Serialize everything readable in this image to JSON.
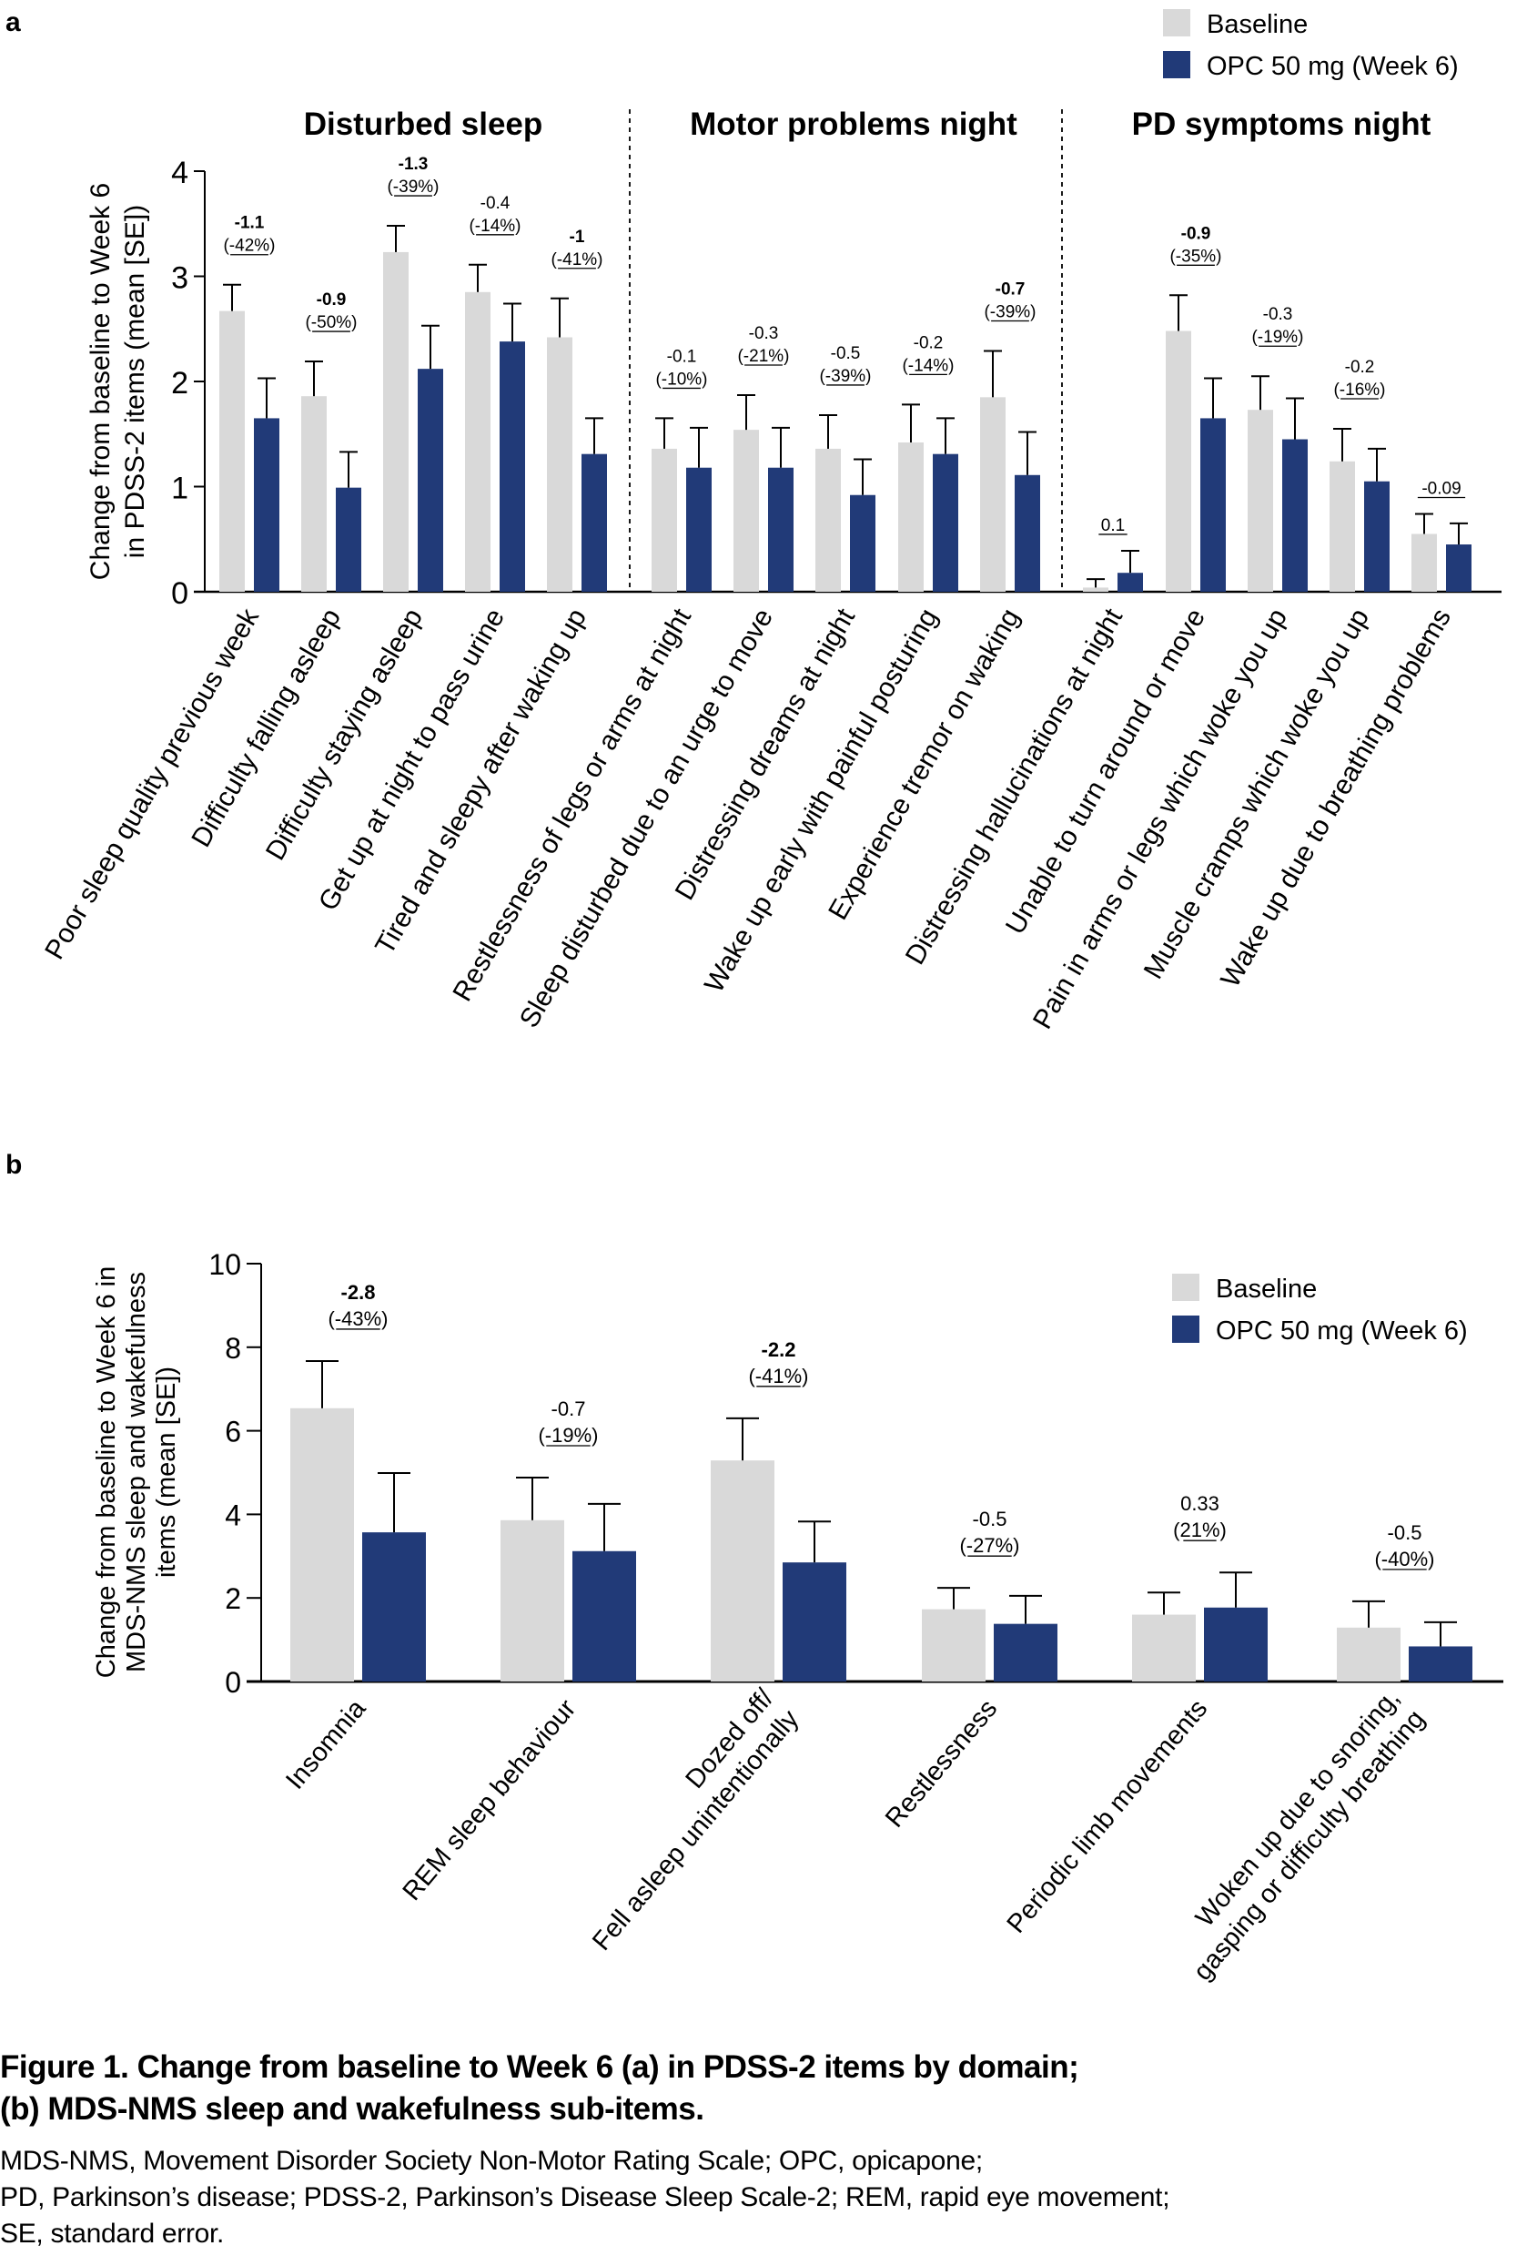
{
  "panels": {
    "a_label": "a",
    "b_label": "b"
  },
  "legend": {
    "items": [
      {
        "label": "Baseline",
        "color": "#d9d9d9"
      },
      {
        "label": "OPC 50 mg (Week 6)",
        "color": "#213a78"
      }
    ]
  },
  "caption": {
    "title_line1": "Figure 1. Change from baseline to Week 6 (a) in PDSS-2 items by domain;",
    "title_line2": "(b) MDS-NMS sleep and wakefulness sub-items.",
    "abbr_line1": "MDS-NMS, Movement Disorder Society Non-Motor Rating Scale; OPC, opicapone;",
    "abbr_line2": "PD, Parkinson’s disease; PDSS-2, Parkinson’s Disease Sleep Scale-2; REM, rapid eye movement;",
    "abbr_line3": "SE, standard error."
  },
  "chart_data": [
    {
      "type": "bar",
      "panel": "a",
      "title": "",
      "ylabel_lines": [
        "Change from baseline to Week 6",
        "in PDSS-2 items (mean [SE])"
      ],
      "ylim": [
        0,
        4
      ],
      "yticks": [
        0,
        1,
        2,
        3,
        4
      ],
      "grid": false,
      "legend_position": "top-right",
      "domains": [
        {
          "label": "Disturbed sleep",
          "count": 5
        },
        {
          "label": "Motor problems night",
          "count": 5
        },
        {
          "label": "PD symptoms night",
          "count": 5
        }
      ],
      "categories": [
        "Poor sleep quality previous week",
        "Difficulty falling asleep",
        "Difficulty staying asleep",
        "Get up at night to pass urine",
        "Tired and sleepy after waking up",
        "Restlessness of legs or arms at night",
        "Sleep disturbed due to an urge to move",
        "Distressing dreams at night",
        "Wake up early with painful posturing",
        "Experience tremor on waking",
        "Distressing hallucinations at night",
        "Unable to turn around or move",
        "Pain in arms or legs which woke you up",
        "Muscle cramps which woke you up",
        "Wake up due to breathing problems"
      ],
      "series": [
        {
          "name": "Baseline",
          "color": "#d9d9d9",
          "values": [
            2.67,
            1.86,
            3.23,
            2.85,
            2.42,
            1.36,
            1.54,
            1.36,
            1.42,
            1.85,
            0.04,
            2.48,
            1.73,
            1.24,
            0.55
          ],
          "se_upper": [
            2.92,
            2.19,
            3.48,
            3.11,
            2.79,
            1.65,
            1.87,
            1.68,
            1.78,
            2.29,
            0.12,
            2.82,
            2.05,
            1.55,
            0.74
          ]
        },
        {
          "name": "OPC 50 mg (Week 6)",
          "color": "#213a78",
          "values": [
            1.65,
            0.99,
            2.12,
            2.38,
            1.31,
            1.18,
            1.18,
            0.92,
            1.31,
            1.11,
            0.18,
            1.65,
            1.45,
            1.05,
            0.45
          ],
          "se_upper": [
            2.03,
            1.33,
            2.53,
            2.74,
            1.65,
            1.56,
            1.56,
            1.26,
            1.65,
            1.52,
            0.39,
            2.03,
            1.84,
            1.36,
            0.65
          ]
        }
      ],
      "annotations": [
        {
          "change": "-1.1",
          "pct": "(-42%)",
          "bold": true
        },
        {
          "change": "-0.9",
          "pct": "(-50%)",
          "bold": true
        },
        {
          "change": "-1.3",
          "pct": "(-39%)",
          "bold": true
        },
        {
          "change": "-0.4",
          "pct": "(-14%)",
          "bold": false
        },
        {
          "change": "-1",
          "pct": "(-41%)",
          "bold": true
        },
        {
          "change": "-0.1",
          "pct": "(-10%)",
          "bold": false
        },
        {
          "change": "-0.3",
          "pct": "(-21%)",
          "bold": false
        },
        {
          "change": "-0.5",
          "pct": "(-39%)",
          "bold": false
        },
        {
          "change": "-0.2",
          "pct": "(-14%)",
          "bold": false
        },
        {
          "change": "-0.7",
          "pct": "(-39%)",
          "bold": true
        },
        {
          "change": "0.1",
          "pct": "",
          "bold": false
        },
        {
          "change": "-0.9",
          "pct": "(-35%)",
          "bold": true
        },
        {
          "change": "-0.3",
          "pct": "(-19%)",
          "bold": false
        },
        {
          "change": "-0.2",
          "pct": "(-16%)",
          "bold": false
        },
        {
          "change": "-0.09",
          "pct": "",
          "bold": false
        }
      ]
    },
    {
      "type": "bar",
      "panel": "b",
      "title": "",
      "ylabel_lines": [
        "Change from baseline to Week 6 in",
        "MDS-NMS sleep and wakefulness",
        "items (mean [SE])"
      ],
      "ylim": [
        0,
        10
      ],
      "yticks": [
        0,
        2,
        4,
        6,
        8,
        10
      ],
      "grid": false,
      "legend_position": "top-right",
      "categories": [
        [
          "Insomnia"
        ],
        [
          "REM sleep behaviour"
        ],
        [
          "Dozed off/",
          "Fell asleep unintentionally"
        ],
        [
          "Restlessness"
        ],
        [
          "Periodic limb movements"
        ],
        [
          "Woken up due to snoring,",
          "gasping or difficulty breathing"
        ]
      ],
      "series": [
        {
          "name": "Baseline",
          "color": "#d9d9d9",
          "values": [
            6.54,
            3.86,
            5.29,
            1.73,
            1.6,
            1.29
          ],
          "se_upper": [
            7.67,
            4.88,
            6.3,
            2.24,
            2.13,
            1.92
          ]
        },
        {
          "name": "OPC 50 mg (Week 6)",
          "color": "#213a78",
          "values": [
            3.57,
            3.12,
            2.85,
            1.38,
            1.77,
            0.84
          ],
          "se_upper": [
            4.99,
            4.25,
            3.83,
            2.05,
            2.61,
            1.42
          ]
        }
      ],
      "annotations": [
        {
          "change": "-2.8",
          "pct": "(-43%)",
          "bold": true
        },
        {
          "change": "-0.7",
          "pct": "(-19%)",
          "bold": false
        },
        {
          "change": "-2.2",
          "pct": "(-41%)",
          "bold": true
        },
        {
          "change": "-0.5",
          "pct": "(-27%)",
          "bold": false
        },
        {
          "change": "0.33",
          "pct": "(21%)",
          "bold": false
        },
        {
          "change": "-0.5",
          "pct": "(-40%)",
          "bold": false
        }
      ]
    }
  ]
}
